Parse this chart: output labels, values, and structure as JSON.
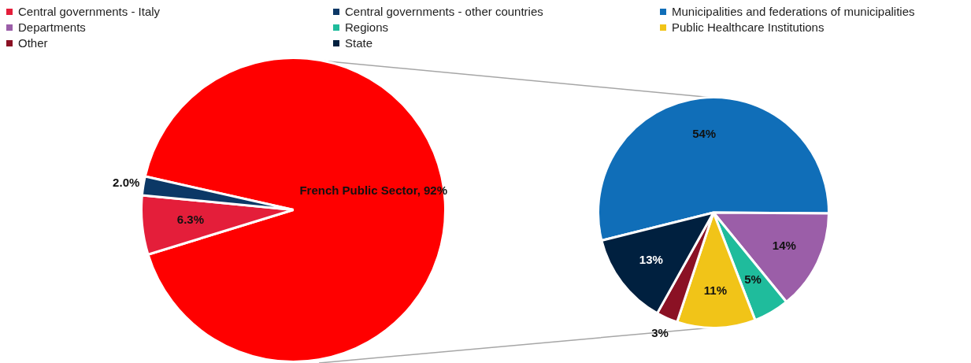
{
  "chart_data": [
    {
      "type": "pie",
      "categories": [
        null,
        "Central governments - Italy",
        "Central governments - other countries"
      ],
      "values": [
        92,
        6.3,
        2.0
      ],
      "colors": [
        "#ff0000",
        "#e41e3a",
        "#0c3866"
      ],
      "value_labels": [
        "French Public Sector, 92%",
        "6.3%",
        "2.0%"
      ],
      "legend": "top"
    },
    {
      "type": "pie",
      "categories": [
        "Municipalities and federations of municipalities",
        "Departments",
        "Regions",
        "Public Healthcare Institutions",
        "Other",
        "State"
      ],
      "values": [
        54,
        14,
        5,
        11,
        3,
        13
      ],
      "colors": [
        "#106eb8",
        "#9b5ea8",
        "#1fbc9c",
        "#f1c418",
        "#8b1124",
        "#00203f"
      ],
      "value_labels": [
        "54%",
        "14%",
        "5%",
        "11%",
        "3%",
        "13%"
      ],
      "legend": "top"
    }
  ]
}
